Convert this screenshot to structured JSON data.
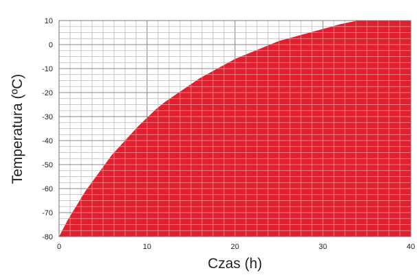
{
  "chart_data": {
    "type": "area",
    "title": "",
    "xlabel": "Czas (h)",
    "ylabel": "Temperatura (ºC)",
    "xlim": [
      0,
      40
    ],
    "ylim": [
      -80,
      10
    ],
    "x_ticks": [
      "0",
      "10",
      "20",
      "30",
      "40"
    ],
    "y_ticks": [
      "10",
      "0",
      "-10",
      "-20",
      "-30",
      "-40",
      "-50",
      "-60",
      "-70",
      "-80"
    ],
    "grid": true,
    "grid_minor_x_step": 1.25,
    "grid_minor_y_step": 2.5,
    "fill_color": "#e0202e",
    "series": [
      {
        "x": [
          0,
          1,
          2,
          3,
          4,
          5,
          6,
          7,
          8,
          9,
          10,
          11,
          12,
          13,
          14,
          15,
          16,
          17,
          18,
          19,
          20,
          21,
          22,
          23,
          24,
          25,
          26,
          27,
          28,
          29,
          30,
          31,
          32,
          33,
          34,
          35,
          36,
          37,
          38,
          39,
          40
        ],
        "y": [
          -80,
          -73,
          -67,
          -61,
          -56,
          -51,
          -46,
          -42,
          -38,
          -34,
          -30.5,
          -27,
          -24,
          -21.5,
          -19,
          -16.5,
          -14,
          -12,
          -10,
          -8,
          -6,
          -4.5,
          -3,
          -1.5,
          0,
          1.5,
          2.5,
          3.5,
          4.5,
          5.5,
          6.5,
          7.5,
          8.5,
          9.3,
          10,
          10,
          10,
          10,
          10,
          10,
          10
        ]
      }
    ]
  }
}
